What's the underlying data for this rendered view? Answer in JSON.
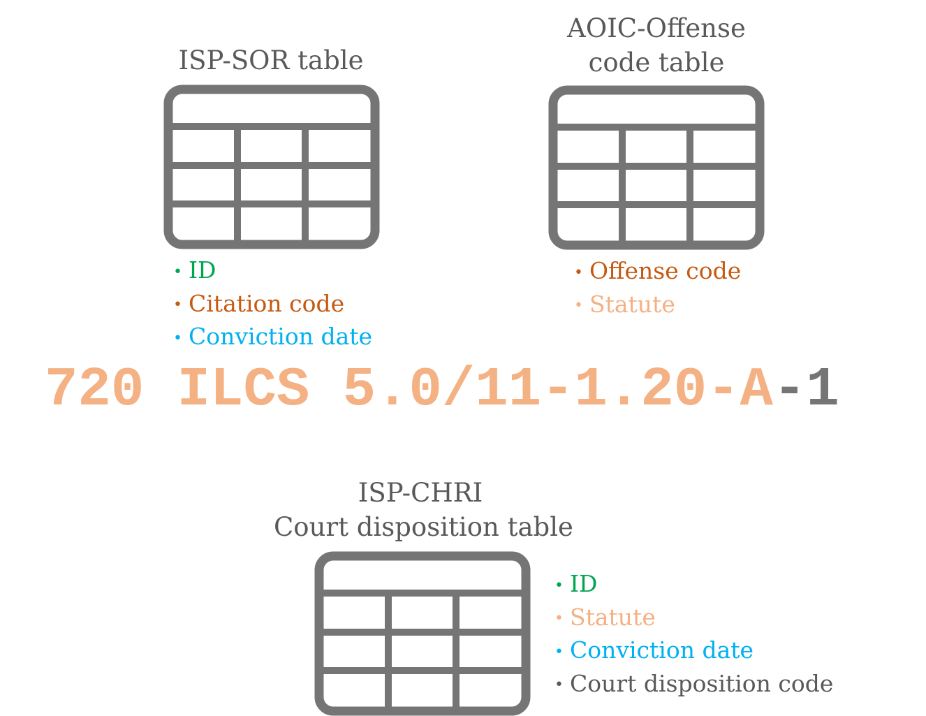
{
  "colors": {
    "icon_gray": "#757575",
    "title_gray": "#595959",
    "id_green": "#00a550",
    "citation_orange": "#c55a11",
    "conviction_blue": "#00b0f0",
    "statute_peach": "#f4b183",
    "disposition_gray": "#595959"
  },
  "isp_sor": {
    "title": "ISP-SOR table",
    "icon": "table-icon",
    "fields": [
      {
        "label": "ID",
        "color": "#00a550"
      },
      {
        "label": "Citation code",
        "color": "#c55a11"
      },
      {
        "label": "Conviction date",
        "color": "#00b0f0"
      }
    ]
  },
  "aoic": {
    "title_line1": "AOIC-Offense",
    "title_line2": "code table",
    "icon": "table-icon",
    "fields": [
      {
        "label": "Offense code",
        "color": "#c55a11"
      },
      {
        "label": "Statute",
        "color": "#f4b183"
      }
    ]
  },
  "citation_example": {
    "statute_part": "720 ILCS 5.0/11-1.20-A",
    "disposition_part": "-1",
    "statute_color": "#f4b183",
    "disposition_color": "#757575"
  },
  "isp_chri": {
    "title_line1": "ISP-CHRI",
    "title_line2": "Court disposition table",
    "icon": "table-icon",
    "fields": [
      {
        "label": "ID",
        "color": "#00a550"
      },
      {
        "label": "Statute",
        "color": "#f4b183"
      },
      {
        "label": "Conviction date",
        "color": "#00b0f0"
      },
      {
        "label": "Court disposition code",
        "color": "#595959"
      }
    ]
  },
  "bullet": "•"
}
